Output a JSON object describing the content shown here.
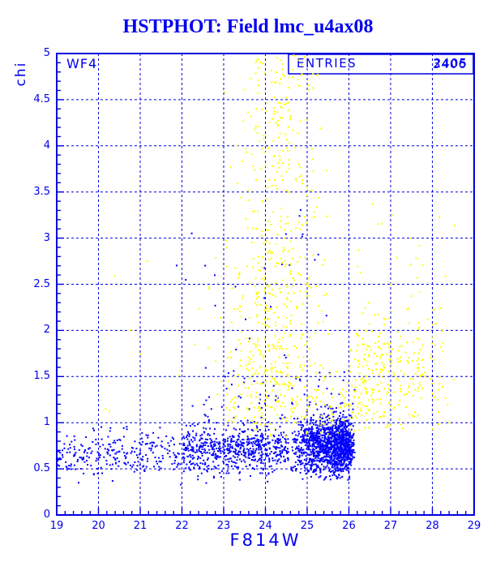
{
  "title": "HSTPHOT: Field lmc_u4ax08",
  "detector_label": "WF4",
  "stats_box": {
    "label": "ENTRIES",
    "values": [
      "2405",
      "3406"
    ]
  },
  "axes": {
    "x": {
      "label": "F814W",
      "min": 19,
      "max": 29,
      "major_step": 1,
      "minor_step": 0.2,
      "tick_labels": [
        "19",
        "20",
        "21",
        "22",
        "23",
        "24",
        "25",
        "26",
        "27",
        "28",
        "29"
      ]
    },
    "y": {
      "label": "chi",
      "min": 0,
      "max": 5,
      "major_step": 0.5,
      "minor_step": 0.1,
      "tick_labels": [
        "0",
        "0.5",
        "1",
        "1.5",
        "2",
        "2.5",
        "3",
        "3.5",
        "4",
        "4.5",
        "5"
      ]
    }
  },
  "colors": {
    "frame": "#0000dd",
    "grid": "#0000dd",
    "text": "#0000ee",
    "blue_points": "#0000ff",
    "yellow_points": "#ffff00"
  },
  "chart_data": {
    "type": "scatter",
    "title": "HSTPHOT: Field lmc_u4ax08",
    "xlabel": "F814W",
    "ylabel": "chi",
    "xlim": [
      19,
      29
    ],
    "ylim": [
      0,
      5
    ],
    "grid": "dashed lines at every x major (1 mag) and y major (0.5 chi)",
    "legend": "none; two point populations (blue and yellow), entries 2405 and 3406 overprinted in stats box",
    "description": "Blue points: dense low-chi stellar locus, chi ~0.4-1.1 across F814W 19-26.15 with a sharp faint-end cutoff at 26.15 and strong density increase toward 25-26. Yellow points: high-chi plume centered near F814W 24.2 rising from chi ~1.4 to 5, plus a diffuse cloud at F814W 26-28.6 with chi ~1-2.5 and a thin band near chi ~1.1 over F814W 23-26.",
    "series": [
      {
        "name": "blue",
        "color": "#0000ff",
        "total": 2405,
        "marker": "2px square",
        "clusters": [
          {
            "count": 260,
            "x": {
              "dist": "uniform",
              "a": 19.0,
              "b": 22.0
            },
            "y": {
              "dist": "normal",
              "mean": 0.66,
              "sd": 0.12,
              "lo": 0.28,
              "hi": 1.05
            }
          },
          {
            "count": 650,
            "x": {
              "dist": "uniform",
              "a": 22.0,
              "b": 24.55
            },
            "y": {
              "dist": "normal",
              "mean": 0.71,
              "sd": 0.13,
              "lo": 0.32,
              "hi": 1.3
            }
          },
          {
            "count": 1400,
            "x": {
              "dist": "triangular",
              "a": 24.55,
              "b": 26.15,
              "c": 25.95
            },
            "y": {
              "dist": "normal",
              "mean": 0.75,
              "sd": 0.16,
              "lo": 0.38,
              "hi": 1.55
            }
          },
          {
            "count": 70,
            "x": {
              "dist": "uniform",
              "a": 22.5,
              "b": 26.15
            },
            "y": {
              "dist": "uniform",
              "a": 1.0,
              "b": 1.6
            }
          },
          {
            "count": 25,
            "x": {
              "dist": "uniform",
              "a": 21.5,
              "b": 26.0
            },
            "y": {
              "dist": "uniform",
              "a": 1.6,
              "b": 3.4
            }
          }
        ]
      },
      {
        "name": "yellow",
        "color": "#ffff00",
        "total": 1001,
        "marker": "2px square",
        "clusters": [
          {
            "count": 220,
            "x": {
              "dist": "normal",
              "mean": 24.3,
              "sd": 0.5,
              "lo": 22.8,
              "hi": 25.9
            },
            "y": {
              "dist": "uniform",
              "a": 2.8,
              "b": 5.0
            }
          },
          {
            "count": 279,
            "x": {
              "dist": "normal",
              "mean": 24.2,
              "sd": 0.65,
              "lo": 22.4,
              "hi": 26.1
            },
            "y": {
              "dist": "uniform",
              "a": 1.4,
              "b": 2.8
            }
          },
          {
            "count": 170,
            "x": {
              "dist": "uniform",
              "a": 23.0,
              "b": 26.15
            },
            "y": {
              "dist": "normal",
              "mean": 1.15,
              "sd": 0.18,
              "lo": 0.85,
              "hi": 1.6
            }
          },
          {
            "count": 300,
            "x": {
              "dist": "triangular",
              "a": 25.9,
              "b": 28.65,
              "c": 26.4
            },
            "y": {
              "dist": "normal",
              "mean": 1.5,
              "sd": 0.38,
              "lo": 0.9,
              "hi": 2.6
            }
          },
          {
            "count": 12,
            "x": {
              "dist": "uniform",
              "a": 19.8,
              "b": 23.2
            },
            "y": {
              "dist": "uniform",
              "a": 1.0,
              "b": 3.3
            }
          },
          {
            "count": 20,
            "x": {
              "dist": "uniform",
              "a": 26.2,
              "b": 28.6
            },
            "y": {
              "dist": "uniform",
              "a": 2.2,
              "b": 3.4
            }
          }
        ]
      }
    ]
  }
}
